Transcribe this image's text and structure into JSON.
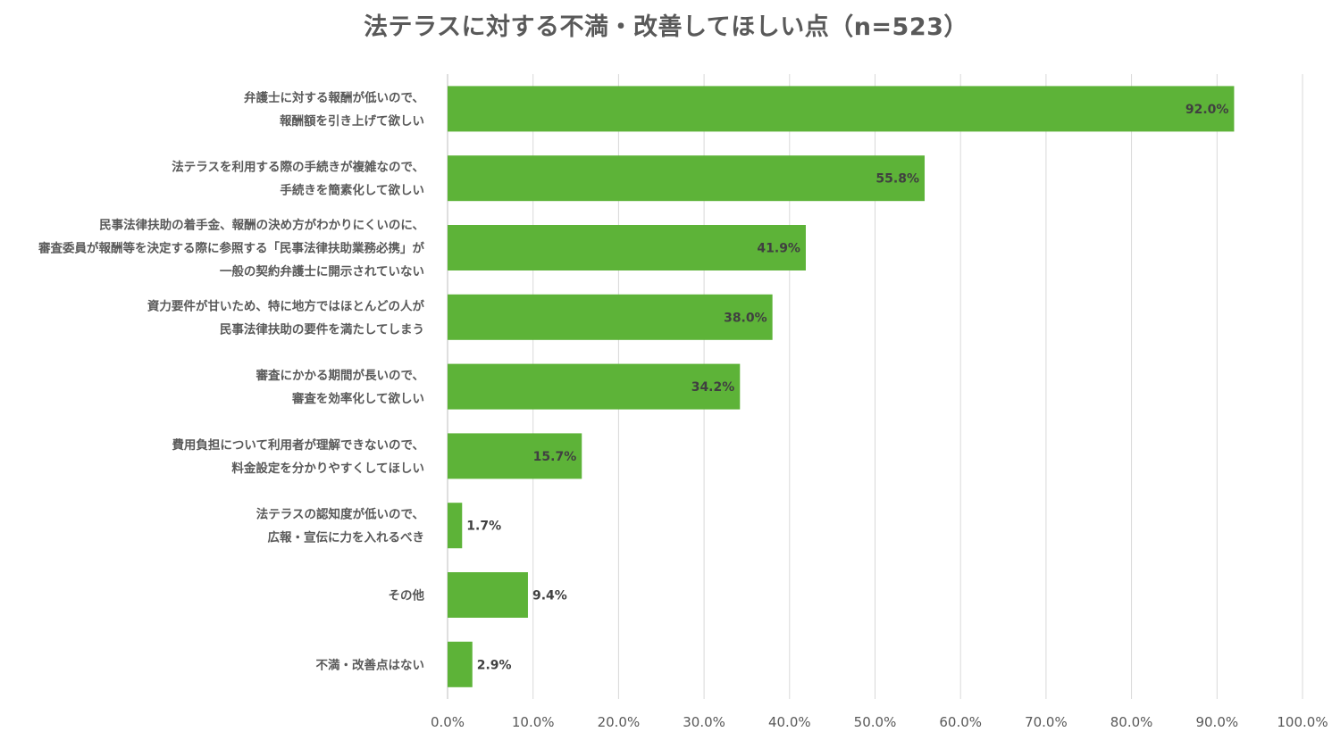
{
  "chart_data": {
    "type": "bar",
    "orientation": "horizontal",
    "title": "法テラスに対する不満・改善してほしい点（n=523）",
    "xlabel": "",
    "ylabel": "",
    "xlim": [
      0,
      100
    ],
    "x_ticks": [
      "0.0%",
      "10.0%",
      "20.0%",
      "30.0%",
      "40.0%",
      "50.0%",
      "60.0%",
      "70.0%",
      "80.0%",
      "90.0%",
      "100.0%"
    ],
    "grid": true,
    "legend": "none",
    "bar_color": "#5db338",
    "categories": [
      [
        "弁護士に対する報酬が低いので、",
        "報酬額を引き上げて欲しい"
      ],
      [
        "法テラスを利用する際の手続きが複雑なので、",
        "手続きを簡素化して欲しい"
      ],
      [
        "民事法律扶助の着手金、報酬の決め方がわかりにくいのに、",
        "審査委員が報酬等を決定する際に参照する「民事法律扶助業務必携」が",
        "一般の契約弁護士に開示されていない"
      ],
      [
        "資力要件が甘いため、特に地方ではほとんどの人が",
        "民事法律扶助の要件を満たしてしまう"
      ],
      [
        "審査にかかる期間が長いので、",
        "審査を効率化して欲しい"
      ],
      [
        "費用負担について利用者が理解できないので、",
        "料金設定を分かりやすくしてほしい"
      ],
      [
        "法テラスの認知度が低いので、",
        "広報・宣伝に力を入れるべき"
      ],
      [
        "その他"
      ],
      [
        "不満・改善点はない"
      ]
    ],
    "values": [
      92.0,
      55.8,
      41.9,
      38.0,
      34.2,
      15.7,
      1.7,
      9.4,
      2.9
    ],
    "data_labels": [
      "92.0%",
      "55.8%",
      "41.9%",
      "38.0%",
      "34.2%",
      "15.7%",
      "1.7%",
      "9.4%",
      "2.9%"
    ]
  }
}
